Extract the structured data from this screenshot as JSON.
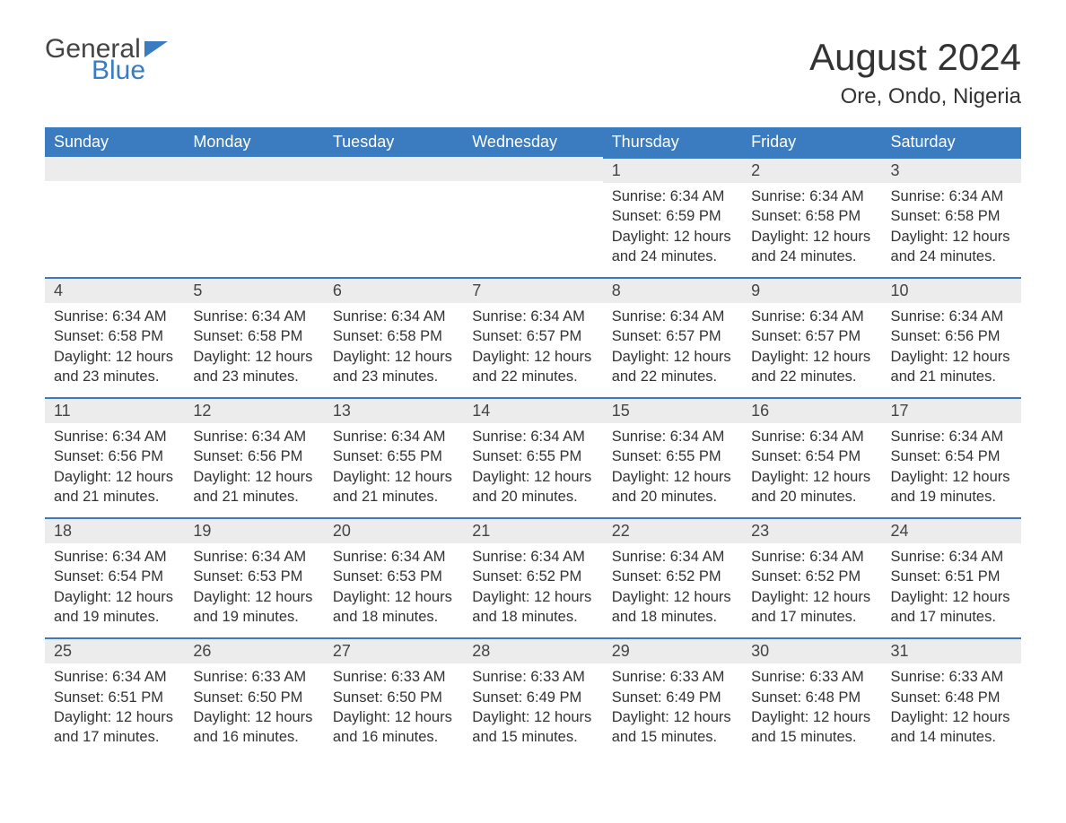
{
  "logo": {
    "text1": "General",
    "text2": "Blue"
  },
  "title": "August 2024",
  "location": "Ore, Ondo, Nigeria",
  "colors": {
    "header_bg": "#3b7bbf",
    "header_text": "#ffffff",
    "daynum_bg": "#ececec",
    "daynum_border": "#3b7bbf",
    "text": "#333333",
    "background": "#ffffff"
  },
  "weekdays": [
    "Sunday",
    "Monday",
    "Tuesday",
    "Wednesday",
    "Thursday",
    "Friday",
    "Saturday"
  ],
  "weeks": [
    [
      null,
      null,
      null,
      null,
      {
        "n": "1",
        "sunrise": "6:34 AM",
        "sunset": "6:59 PM",
        "daylight": "12 hours and 24 minutes."
      },
      {
        "n": "2",
        "sunrise": "6:34 AM",
        "sunset": "6:58 PM",
        "daylight": "12 hours and 24 minutes."
      },
      {
        "n": "3",
        "sunrise": "6:34 AM",
        "sunset": "6:58 PM",
        "daylight": "12 hours and 24 minutes."
      }
    ],
    [
      {
        "n": "4",
        "sunrise": "6:34 AM",
        "sunset": "6:58 PM",
        "daylight": "12 hours and 23 minutes."
      },
      {
        "n": "5",
        "sunrise": "6:34 AM",
        "sunset": "6:58 PM",
        "daylight": "12 hours and 23 minutes."
      },
      {
        "n": "6",
        "sunrise": "6:34 AM",
        "sunset": "6:58 PM",
        "daylight": "12 hours and 23 minutes."
      },
      {
        "n": "7",
        "sunrise": "6:34 AM",
        "sunset": "6:57 PM",
        "daylight": "12 hours and 22 minutes."
      },
      {
        "n": "8",
        "sunrise": "6:34 AM",
        "sunset": "6:57 PM",
        "daylight": "12 hours and 22 minutes."
      },
      {
        "n": "9",
        "sunrise": "6:34 AM",
        "sunset": "6:57 PM",
        "daylight": "12 hours and 22 minutes."
      },
      {
        "n": "10",
        "sunrise": "6:34 AM",
        "sunset": "6:56 PM",
        "daylight": "12 hours and 21 minutes."
      }
    ],
    [
      {
        "n": "11",
        "sunrise": "6:34 AM",
        "sunset": "6:56 PM",
        "daylight": "12 hours and 21 minutes."
      },
      {
        "n": "12",
        "sunrise": "6:34 AM",
        "sunset": "6:56 PM",
        "daylight": "12 hours and 21 minutes."
      },
      {
        "n": "13",
        "sunrise": "6:34 AM",
        "sunset": "6:55 PM",
        "daylight": "12 hours and 21 minutes."
      },
      {
        "n": "14",
        "sunrise": "6:34 AM",
        "sunset": "6:55 PM",
        "daylight": "12 hours and 20 minutes."
      },
      {
        "n": "15",
        "sunrise": "6:34 AM",
        "sunset": "6:55 PM",
        "daylight": "12 hours and 20 minutes."
      },
      {
        "n": "16",
        "sunrise": "6:34 AM",
        "sunset": "6:54 PM",
        "daylight": "12 hours and 20 minutes."
      },
      {
        "n": "17",
        "sunrise": "6:34 AM",
        "sunset": "6:54 PM",
        "daylight": "12 hours and 19 minutes."
      }
    ],
    [
      {
        "n": "18",
        "sunrise": "6:34 AM",
        "sunset": "6:54 PM",
        "daylight": "12 hours and 19 minutes."
      },
      {
        "n": "19",
        "sunrise": "6:34 AM",
        "sunset": "6:53 PM",
        "daylight": "12 hours and 19 minutes."
      },
      {
        "n": "20",
        "sunrise": "6:34 AM",
        "sunset": "6:53 PM",
        "daylight": "12 hours and 18 minutes."
      },
      {
        "n": "21",
        "sunrise": "6:34 AM",
        "sunset": "6:52 PM",
        "daylight": "12 hours and 18 minutes."
      },
      {
        "n": "22",
        "sunrise": "6:34 AM",
        "sunset": "6:52 PM",
        "daylight": "12 hours and 18 minutes."
      },
      {
        "n": "23",
        "sunrise": "6:34 AM",
        "sunset": "6:52 PM",
        "daylight": "12 hours and 17 minutes."
      },
      {
        "n": "24",
        "sunrise": "6:34 AM",
        "sunset": "6:51 PM",
        "daylight": "12 hours and 17 minutes."
      }
    ],
    [
      {
        "n": "25",
        "sunrise": "6:34 AM",
        "sunset": "6:51 PM",
        "daylight": "12 hours and 17 minutes."
      },
      {
        "n": "26",
        "sunrise": "6:33 AM",
        "sunset": "6:50 PM",
        "daylight": "12 hours and 16 minutes."
      },
      {
        "n": "27",
        "sunrise": "6:33 AM",
        "sunset": "6:50 PM",
        "daylight": "12 hours and 16 minutes."
      },
      {
        "n": "28",
        "sunrise": "6:33 AM",
        "sunset": "6:49 PM",
        "daylight": "12 hours and 15 minutes."
      },
      {
        "n": "29",
        "sunrise": "6:33 AM",
        "sunset": "6:49 PM",
        "daylight": "12 hours and 15 minutes."
      },
      {
        "n": "30",
        "sunrise": "6:33 AM",
        "sunset": "6:48 PM",
        "daylight": "12 hours and 15 minutes."
      },
      {
        "n": "31",
        "sunrise": "6:33 AM",
        "sunset": "6:48 PM",
        "daylight": "12 hours and 14 minutes."
      }
    ]
  ],
  "labels": {
    "sunrise": "Sunrise: ",
    "sunset": "Sunset: ",
    "daylight": "Daylight: "
  }
}
